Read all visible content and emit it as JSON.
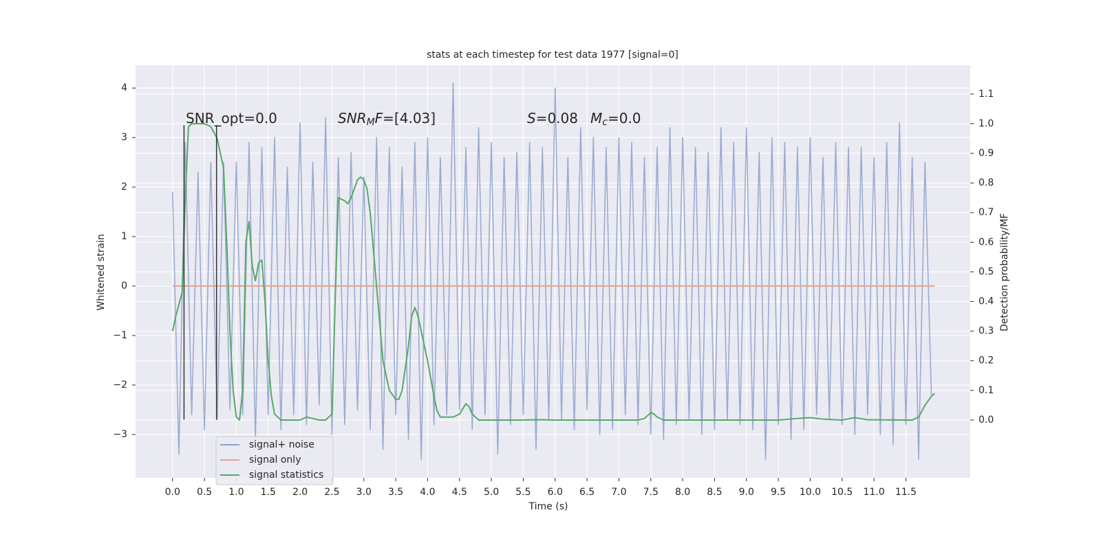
{
  "chart_data": {
    "type": "line",
    "title": "stats at each timestep for test data 1977 [signal=0]",
    "xlabel": "Time (s)",
    "ylabel": "Whitened strain",
    "y2label": "Detection probability/MF",
    "xlim": [
      -0.58,
      12.51
    ],
    "ylim": [
      -3.875,
      4.46
    ],
    "y2lim": [
      -0.195,
      1.197
    ],
    "grid": true,
    "legend": "lower left",
    "xticks": [
      {
        "value": 0,
        "label": "0.0"
      },
      {
        "value": 0.5,
        "label": "0.5"
      },
      {
        "value": 1,
        "label": "1.0"
      },
      {
        "value": 1.5,
        "label": "1.5"
      },
      {
        "value": 2,
        "label": "2.0"
      },
      {
        "value": 2.5,
        "label": "2.5"
      },
      {
        "value": 3,
        "label": "3.0"
      },
      {
        "value": 3.5,
        "label": "3.5"
      },
      {
        "value": 4,
        "label": "4.0"
      },
      {
        "value": 4.5,
        "label": "4.5"
      },
      {
        "value": 5,
        "label": "5.0"
      },
      {
        "value": 5.5,
        "label": "5.5"
      },
      {
        "value": 6,
        "label": "6.0"
      },
      {
        "value": 6.5,
        "label": "6.5"
      },
      {
        "value": 7,
        "label": "7.0"
      },
      {
        "value": 7.5,
        "label": "7.5"
      },
      {
        "value": 8,
        "label": "8.0"
      },
      {
        "value": 8.5,
        "label": "8.5"
      },
      {
        "value": 9,
        "label": "9.0"
      },
      {
        "value": 9.5,
        "label": "9.5"
      },
      {
        "value": 10,
        "label": "10.0"
      },
      {
        "value": 10.5,
        "label": "10.5"
      },
      {
        "value": 11,
        "label": "11.0"
      },
      {
        "value": 11.5,
        "label": "11.5"
      }
    ],
    "yticks": [
      {
        "value": -3,
        "label": "−3"
      },
      {
        "value": -2,
        "label": "−2"
      },
      {
        "value": -1,
        "label": "−1"
      },
      0,
      1,
      2,
      3,
      4
    ],
    "y2ticks": [
      {
        "value": 0,
        "label": "0.0"
      },
      {
        "value": 0.1,
        "label": "0.1"
      },
      {
        "value": 0.2,
        "label": "0.2"
      },
      {
        "value": 0.3,
        "label": "0.3"
      },
      {
        "value": 0.4,
        "label": "0.4"
      },
      {
        "value": 0.5,
        "label": "0.5"
      },
      {
        "value": 0.6,
        "label": "0.6"
      },
      {
        "value": 0.7,
        "label": "0.7"
      },
      {
        "value": 0.8,
        "label": "0.8"
      },
      {
        "value": 0.9,
        "label": "0.9"
      },
      {
        "value": 1,
        "label": "1.0"
      },
      {
        "value": 1.1,
        "label": "1.1"
      }
    ],
    "series": [
      {
        "name": "signal+ noise",
        "color": "#8da0cb",
        "x": [
          0,
          0.1,
          0.2,
          0.3,
          0.4,
          0.5,
          0.6,
          0.7,
          0.8,
          0.9,
          1,
          1.1,
          1.2,
          1.3,
          1.4,
          1.5,
          1.6,
          1.7,
          1.8,
          1.9,
          2,
          2.1,
          2.2,
          2.3,
          2.4,
          2.5,
          2.6,
          2.7,
          2.8,
          2.9,
          3,
          3.1,
          3.2,
          3.3,
          3.4,
          3.5,
          3.6,
          3.7,
          3.8,
          3.9,
          4,
          4.1,
          4.2,
          4.3,
          4.4,
          4.5,
          4.6,
          4.7,
          4.8,
          4.9,
          5,
          5.1,
          5.2,
          5.3,
          5.4,
          5.5,
          5.6,
          5.7,
          5.8,
          5.9,
          6,
          6.1,
          6.2,
          6.3,
          6.4,
          6.5,
          6.6,
          6.7,
          6.8,
          6.9,
          7,
          7.1,
          7.2,
          7.3,
          7.4,
          7.5,
          7.6,
          7.7,
          7.8,
          7.9,
          8,
          8.1,
          8.2,
          8.3,
          8.4,
          8.5,
          8.6,
          8.7,
          8.8,
          8.9,
          9,
          9.1,
          9.2,
          9.3,
          9.4,
          9.5,
          9.6,
          9.7,
          9.8,
          9.9,
          10,
          10.1,
          10.2,
          10.3,
          10.4,
          10.5,
          10.6,
          10.7,
          10.8,
          10.9,
          11,
          11.1,
          11.2,
          11.3,
          11.4,
          11.5,
          11.6,
          11.7,
          11.8,
          11.9
        ],
        "values": [
          1.9,
          -3.4,
          2.9,
          -2.6,
          2.3,
          -2.9,
          2.5,
          -2.7,
          2.5,
          -2.5,
          2.5,
          -2.6,
          2.9,
          -3.1,
          2.8,
          -2.6,
          3.0,
          -2.9,
          2.4,
          -2.6,
          3.3,
          -2.8,
          2.5,
          -2.4,
          3.4,
          -3.0,
          2.6,
          -2.8,
          2.7,
          -2.5,
          2.2,
          -2.9,
          3.0,
          -3.3,
          2.8,
          -2.6,
          2.4,
          -3.1,
          2.9,
          -3.5,
          3.0,
          -2.8,
          2.6,
          -2.6,
          4.1,
          -2.5,
          2.8,
          -2.9,
          3.2,
          -2.6,
          2.9,
          -3.4,
          2.6,
          -2.8,
          2.7,
          -2.6,
          2.9,
          -3.3,
          2.8,
          -2.7,
          4.0,
          -2.7,
          2.6,
          -2.9,
          3.2,
          -2.5,
          3.0,
          -3.0,
          2.8,
          -2.9,
          3.0,
          -2.6,
          2.9,
          -2.8,
          2.6,
          -3.0,
          2.8,
          -3.1,
          3.2,
          -2.8,
          3.0,
          -2.7,
          2.8,
          -3.0,
          2.7,
          -2.9,
          3.2,
          -2.7,
          2.9,
          -2.8,
          3.2,
          -2.9,
          2.7,
          -3.5,
          3.0,
          -2.8,
          2.9,
          -3.1,
          2.8,
          -2.9,
          3.0,
          -2.6,
          2.6,
          -2.7,
          2.9,
          -2.8,
          2.8,
          -3.0,
          2.8,
          -2.6,
          2.6,
          -3.0,
          2.9,
          -3.2,
          3.3,
          -2.8,
          2.6,
          -3.5,
          2.5,
          -2.2
        ]
      },
      {
        "name": "signal only",
        "color": "#e5a58a",
        "x": [
          0,
          11.95
        ],
        "values": [
          0,
          0
        ]
      },
      {
        "name": "signal statistics",
        "color": "#55a868",
        "axis": "y2",
        "x": [
          0,
          0.05,
          0.15,
          0.2,
          0.25,
          0.3,
          0.5,
          0.6,
          0.65,
          0.7,
          0.8,
          0.85,
          0.9,
          0.95,
          1,
          1.05,
          1.1,
          1.15,
          1.2,
          1.25,
          1.3,
          1.35,
          1.4,
          1.45,
          1.5,
          1.55,
          1.6,
          1.7,
          1.8,
          2,
          2.1,
          2.3,
          2.4,
          2.5,
          2.55,
          2.6,
          2.7,
          2.75,
          2.8,
          2.9,
          2.95,
          3,
          3.05,
          3.1,
          3.2,
          3.3,
          3.4,
          3.5,
          3.55,
          3.6,
          3.7,
          3.75,
          3.8,
          3.85,
          3.9,
          4,
          4.1,
          4.15,
          4.2,
          4.4,
          4.5,
          4.6,
          4.65,
          4.7,
          4.8,
          5,
          5.5,
          5.8,
          6,
          7,
          7.3,
          7.4,
          7.5,
          7.55,
          7.6,
          7.7,
          8.5,
          9,
          9.5,
          9.8,
          10,
          10.2,
          10.5,
          10.7,
          10.9,
          11.5,
          11.6,
          11.7,
          11.8,
          11.9,
          11.95
        ],
        "values": [
          0.3,
          0.35,
          0.43,
          0.75,
          0.99,
          1.0,
          1.0,
          0.99,
          0.97,
          0.95,
          0.85,
          0.6,
          0.3,
          0.1,
          0.01,
          0.0,
          0.1,
          0.6,
          0.67,
          0.52,
          0.47,
          0.53,
          0.54,
          0.4,
          0.2,
          0.08,
          0.02,
          0.0,
          0.0,
          0.0,
          0.01,
          0.0,
          0.0,
          0.02,
          0.4,
          0.75,
          0.74,
          0.73,
          0.75,
          0.81,
          0.82,
          0.81,
          0.78,
          0.7,
          0.45,
          0.2,
          0.1,
          0.07,
          0.07,
          0.1,
          0.25,
          0.35,
          0.38,
          0.35,
          0.3,
          0.2,
          0.08,
          0.03,
          0.01,
          0.01,
          0.02,
          0.055,
          0.045,
          0.02,
          0.0,
          0.0,
          0.0,
          0.001,
          0.0,
          0.0,
          0.0,
          0.005,
          0.025,
          0.02,
          0.01,
          0.0,
          0.0,
          0.0,
          0.0,
          0.005,
          0.008,
          0.003,
          0.0,
          0.008,
          0.001,
          0.0,
          0.0,
          0.01,
          0.05,
          0.08,
          0.09
        ]
      }
    ],
    "vlines": {
      "x": [
        0.18,
        0.69
      ],
      "ymin": -2.7,
      "ymax": 3.25,
      "color": "#333333"
    },
    "annotations": [
      [
        {
          "text": "SNR_opt=0.0"
        }
      ],
      [
        {
          "text": "SNR",
          "style": "italic"
        },
        {
          "text": "M",
          "style": "sub"
        },
        {
          "text": "F",
          "style": "italic"
        },
        {
          "text": "=[4.03]"
        }
      ],
      [
        {
          "text": "S",
          "style": "italic"
        },
        {
          "text": "=0.08"
        }
      ],
      [
        {
          "text": "M",
          "style": "italic"
        },
        {
          "text": "c",
          "style": "sub"
        },
        {
          "text": "=0.0"
        }
      ]
    ]
  }
}
